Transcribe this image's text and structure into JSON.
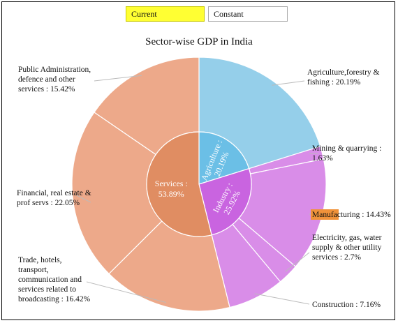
{
  "tabs": [
    {
      "label": "Current",
      "active": true,
      "color": "#ffff33"
    },
    {
      "label": "Constant",
      "active": false,
      "color": "#ffffff"
    }
  ],
  "chart_data": {
    "type": "sunburst",
    "title": "Sector-wise GDP in India",
    "inner": [
      {
        "label": "Agriculture : 20.19%",
        "value": 20.19,
        "color": "#6bbfe6"
      },
      {
        "label": "Industry : 25.92%",
        "value": 25.92,
        "color": "#c964e0"
      },
      {
        "label": "Services : 53.89%",
        "value": 53.89,
        "color": "#e08d62"
      }
    ],
    "outer": [
      {
        "label": "Agriculture,forestry & fishing : 20.19%",
        "value": 20.19,
        "color": "#95cfea",
        "parent": "Agriculture"
      },
      {
        "label": "Mining & quarrying : 1.63%",
        "value": 1.63,
        "color": "#d98de8",
        "parent": "Industry"
      },
      {
        "label": "Manufacturing : 14.43%",
        "value": 14.43,
        "color": "#d98de8",
        "parent": "Industry",
        "highlight": "Manufact",
        "highlight_color": "#f0923a"
      },
      {
        "label": "Electricity, gas, water supply & other utility services : 2.7%",
        "value": 2.7,
        "color": "#d98de8",
        "parent": "Industry"
      },
      {
        "label": "Construction : 7.16%",
        "value": 7.16,
        "color": "#d98de8",
        "parent": "Industry"
      },
      {
        "label": "Trade, hotels, transport, communication and services related to broadcasting : 16.42%",
        "value": 16.42,
        "color": "#eda98a",
        "parent": "Services"
      },
      {
        "label": "Financial, real estate & prof servs : 22.05%",
        "value": 22.05,
        "color": "#eda98a",
        "parent": "Services"
      },
      {
        "label": "Public Administration, defence and other services : 15.42%",
        "value": 15.42,
        "color": "#eda98a",
        "parent": "Services"
      }
    ]
  }
}
